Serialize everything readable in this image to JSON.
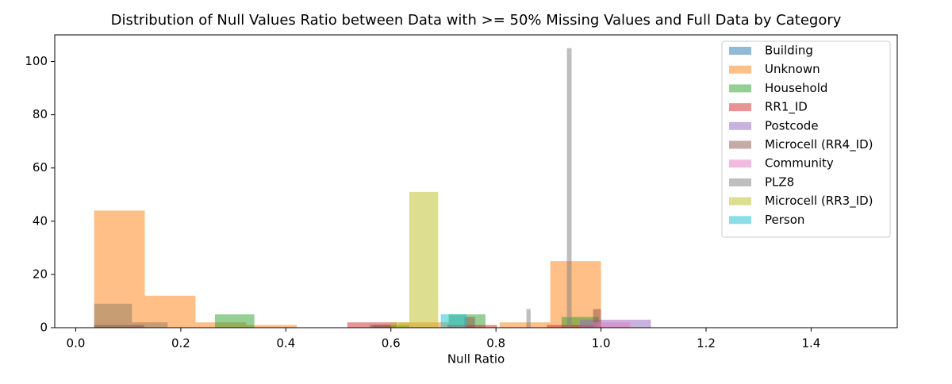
{
  "chart_data": {
    "type": "histogram",
    "title": "Distribution of Null Values Ratio between Data with >= 50% Missing Values and Full Data by Category",
    "xlabel": "Null Ratio",
    "xlim": [
      -0.04,
      1.564
    ],
    "ylim": [
      0,
      110
    ],
    "xticks": [
      {
        "value": 0,
        "label": "0.0"
      },
      {
        "value": 0.2,
        "label": "0.2"
      },
      {
        "value": 0.4,
        "label": "0.4"
      },
      {
        "value": 0.6,
        "label": "0.6"
      },
      {
        "value": 0.8,
        "label": "0.8"
      },
      {
        "value": 1,
        "label": "1.0"
      },
      {
        "value": 1.2,
        "label": "1.2"
      },
      {
        "value": 1.4,
        "label": "1.4"
      }
    ],
    "yticks": [
      0,
      20,
      40,
      60,
      80,
      100
    ],
    "legend": "upper right",
    "alpha": 0.5,
    "series": [
      {
        "name": "Building",
        "color": "#1f77b4",
        "bins": [
          0.035,
          0.107,
          0.175
        ],
        "values": [
          9,
          2
        ]
      },
      {
        "name": "Unknown",
        "color": "#ff7f0e",
        "bins": [
          0.035,
          0.1315,
          0.228,
          0.3245,
          0.421,
          0.5175,
          0.614,
          0.7105,
          0.807,
          0.9035,
          1.0
        ],
        "values": [
          44,
          12,
          2,
          1,
          0,
          0,
          2,
          0,
          2,
          25
        ]
      },
      {
        "name": "Household",
        "color": "#2ca02c",
        "bins": [
          0.265,
          0.34,
          0.415,
          0.49,
          0.565,
          0.635,
          0.71,
          0.78,
          0.855,
          0.925,
          0.995
        ],
        "values": [
          5,
          0,
          0,
          0,
          1,
          0,
          5,
          0,
          0,
          4
        ]
      },
      {
        "name": "RR1_ID",
        "color": "#d62728",
        "bins": [
          0.517,
          0.612,
          0.707,
          0.802,
          0.897,
          0.99
        ],
        "values": [
          2,
          0,
          1,
          0,
          1
        ]
      },
      {
        "name": "Postcode",
        "color": "#9467bd",
        "bins": [
          0.96,
          1.03,
          1.095
        ],
        "values": [
          3,
          3
        ]
      },
      {
        "name": "Microcell (RR4_ID)",
        "color": "#8c564b",
        "bins": [
          0.035,
          0.13,
          0.56,
          0.61,
          0.74,
          0.76,
          0.985,
          1.0
        ],
        "values": [
          1,
          0,
          1,
          0,
          4,
          0,
          7
        ]
      },
      {
        "name": "Community",
        "color": "#e377c2",
        "bins": [
          0.985,
          1.055
        ],
        "values": [
          2
        ]
      },
      {
        "name": "PLZ8",
        "color": "#7f7f7f",
        "bins": [
          0.858,
          0.866,
          0.935,
          0.944
        ],
        "values": [
          7,
          0,
          105
        ]
      },
      {
        "name": "Microcell (RR3_ID)",
        "color": "#bcbd22",
        "bins": [
          0.6,
          0.635,
          0.69
        ],
        "values": [
          2,
          51
        ]
      },
      {
        "name": "Person",
        "color": "#17becf",
        "bins": [
          0.695,
          0.744
        ],
        "values": [
          5
        ]
      }
    ]
  }
}
